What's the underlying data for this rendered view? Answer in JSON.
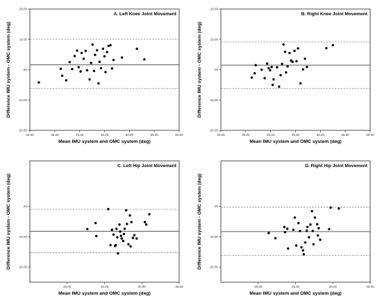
{
  "chart_data": [
    {
      "type": "scatter",
      "title": "A. Left Knee Joint Movement",
      "xlabel": "Mean IMU system and OMC system (deg)",
      "ylabel": "Difference IMU system - OMC system (deg)",
      "xlim": [
        30,
        60
      ],
      "ylim": [
        -20,
        20
      ],
      "xticks": [
        "30.00",
        "35.00",
        "40.00",
        "45.00",
        "50.00",
        "55.00",
        "60.00"
      ],
      "yticks": [
        "20.00",
        "10.00",
        ".00",
        "-10.00",
        "-20.00"
      ],
      "lines": {
        "mean": 1.6,
        "upper_loa": 10.0,
        "lower_loa": -6.2
      },
      "grid": false,
      "points": [
        [
          31.8,
          -4.2
        ],
        [
          36.2,
          0.3
        ],
        [
          36.5,
          -2.0
        ],
        [
          37.3,
          -3.5
        ],
        [
          38.0,
          2.5
        ],
        [
          38.5,
          0.2
        ],
        [
          39.0,
          4.5
        ],
        [
          39.5,
          6.3
        ],
        [
          39.8,
          0.8
        ],
        [
          40.2,
          -0.6
        ],
        [
          40.4,
          5.5
        ],
        [
          40.8,
          3.6
        ],
        [
          41.2,
          6.2
        ],
        [
          41.5,
          -0.2
        ],
        [
          42.0,
          -3.2
        ],
        [
          42.3,
          2.2
        ],
        [
          42.6,
          8.3
        ],
        [
          42.9,
          -0.4
        ],
        [
          43.1,
          4.9
        ],
        [
          43.5,
          6.4
        ],
        [
          43.8,
          -4.5
        ],
        [
          44.0,
          2.6
        ],
        [
          44.3,
          0.5
        ],
        [
          44.7,
          6.9
        ],
        [
          45.0,
          4.4
        ],
        [
          45.2,
          -0.8
        ],
        [
          45.5,
          5.8
        ],
        [
          45.8,
          7.8
        ],
        [
          46.2,
          8.1
        ],
        [
          46.5,
          0.4
        ],
        [
          46.8,
          3.2
        ],
        [
          48.5,
          4.0
        ],
        [
          51.5,
          6.9
        ],
        [
          53.0,
          3.4
        ]
      ]
    },
    {
      "type": "scatter",
      "title": "B. Right Knee Joint Movement",
      "xlabel": "Mean IMU system and OMC system (deg)",
      "ylabel": "Difference IMU system - OMC system (deg)",
      "xlim": [
        30,
        60
      ],
      "ylim": [
        -20,
        20
      ],
      "xticks": [
        "30.00",
        "35.00",
        "40.00",
        "45.00",
        "50.00",
        "55.00",
        "60.00"
      ],
      "yticks": [
        "20.00",
        "10.00",
        ".00",
        "-10.00",
        "-20.00"
      ],
      "lines": {
        "mean": 1.5,
        "upper_loa": 9.2,
        "lower_loa": -6.2
      },
      "grid": false,
      "points": [
        [
          36.2,
          -2.6
        ],
        [
          36.8,
          -1.2
        ],
        [
          37.0,
          1.5
        ],
        [
          38.2,
          0.0
        ],
        [
          38.8,
          -2.8
        ],
        [
          39.3,
          2.0
        ],
        [
          39.6,
          0.5
        ],
        [
          39.9,
          -0.2
        ],
        [
          40.2,
          0.9
        ],
        [
          40.4,
          -5.0
        ],
        [
          40.6,
          -3.2
        ],
        [
          41.3,
          0.8
        ],
        [
          41.7,
          -5.6
        ],
        [
          42.0,
          -1.8
        ],
        [
          42.3,
          1.9
        ],
        [
          42.6,
          8.3
        ],
        [
          42.9,
          5.9
        ],
        [
          43.1,
          -0.9
        ],
        [
          43.4,
          1.1
        ],
        [
          43.8,
          5.5
        ],
        [
          44.1,
          3.0
        ],
        [
          44.4,
          2.6
        ],
        [
          44.8,
          6.2
        ],
        [
          45.2,
          2.8
        ],
        [
          45.5,
          7.0
        ],
        [
          46.0,
          -4.5
        ],
        [
          46.5,
          0.1
        ],
        [
          46.9,
          3.6
        ],
        [
          47.3,
          0.9
        ],
        [
          51.2,
          7.1
        ],
        [
          52.5,
          8.1
        ]
      ]
    },
    {
      "type": "scatter",
      "title": "C. Left Hip Joint Movement",
      "xlabel": "Mean IMU system and OMC system (deg)",
      "ylabel": "Difference IMU system - OMC system (deg)",
      "xlim": [
        15,
        35
      ],
      "ylim": [
        -25,
        15
      ],
      "xticks": [
        "20.00",
        "25.00",
        "30.00",
        "35.00"
      ],
      "yticks": [
        ".00",
        "-10.00",
        "-20.00"
      ],
      "lines": {
        "mean": -8.2,
        "upper_loa": -1.0,
        "lower_loa": -15.3
      },
      "grid": false,
      "points": [
        [
          22.7,
          -7.5
        ],
        [
          23.8,
          -5.5
        ],
        [
          23.9,
          -9.8
        ],
        [
          25.5,
          -0.9
        ],
        [
          25.8,
          -12.8
        ],
        [
          26.0,
          -7.7
        ],
        [
          26.2,
          -9.3
        ],
        [
          26.4,
          -13.1
        ],
        [
          26.5,
          -12.8
        ],
        [
          26.6,
          -7.4
        ],
        [
          26.7,
          -10.2
        ],
        [
          26.8,
          -15.5
        ],
        [
          27.0,
          -6.0
        ],
        [
          27.1,
          -8.3
        ],
        [
          27.2,
          -9.7
        ],
        [
          27.3,
          -10.6
        ],
        [
          27.5,
          -11.4
        ],
        [
          27.6,
          -9.1
        ],
        [
          27.7,
          -7.4
        ],
        [
          27.9,
          -1.3
        ],
        [
          28.0,
          -5.8
        ],
        [
          28.2,
          -12.5
        ],
        [
          28.4,
          -3.0
        ],
        [
          28.5,
          -13.2
        ],
        [
          28.6,
          -5.2
        ],
        [
          28.8,
          -10.4
        ],
        [
          29.0,
          -9.5
        ],
        [
          29.3,
          -10.6
        ],
        [
          30.4,
          -5.2
        ],
        [
          30.6,
          -6.0
        ],
        [
          31.0,
          -2.6
        ]
      ]
    },
    {
      "type": "scatter",
      "title": "D. Right Hip Joint Movement",
      "xlabel": "Mean IMU system and OMC system (deg)",
      "ylabel": "Difference IMU system - OMC system (deg)",
      "xlim": [
        15,
        35
      ],
      "ylim": [
        -25,
        15
      ],
      "xticks": [
        "20.00",
        "25.00",
        "30.00",
        "35.00"
      ],
      "yticks": [
        ".00",
        "-10.00",
        "-20.00"
      ],
      "lines": {
        "mean": -8.3,
        "upper_loa": -0.3,
        "lower_loa": -16.2
      },
      "grid": false,
      "points": [
        [
          21.4,
          -8.8
        ],
        [
          22.3,
          -10.5
        ],
        [
          23.5,
          -6.8
        ],
        [
          23.6,
          -8.5
        ],
        [
          23.9,
          -7.4
        ],
        [
          24.0,
          -13.9
        ],
        [
          24.7,
          -7.7
        ],
        [
          24.9,
          -3.7
        ],
        [
          25.1,
          -12.9
        ],
        [
          25.4,
          -5.5
        ],
        [
          25.6,
          -8.1
        ],
        [
          25.8,
          -13.5
        ],
        [
          26.0,
          -14.5
        ],
        [
          26.1,
          -15.8
        ],
        [
          26.3,
          -11.9
        ],
        [
          26.5,
          -8.0
        ],
        [
          26.6,
          -6.8
        ],
        [
          26.8,
          -10.2
        ],
        [
          27.0,
          -6.0
        ],
        [
          27.2,
          -1.6
        ],
        [
          27.3,
          -8.1
        ],
        [
          27.4,
          -12.5
        ],
        [
          27.6,
          -3.7
        ],
        [
          27.9,
          -5.9
        ],
        [
          28.0,
          -9.6
        ],
        [
          28.1,
          -7.2
        ],
        [
          28.3,
          -11.0
        ],
        [
          29.5,
          -7.5
        ],
        [
          29.7,
          -0.4
        ],
        [
          30.8,
          -0.7
        ]
      ]
    }
  ]
}
